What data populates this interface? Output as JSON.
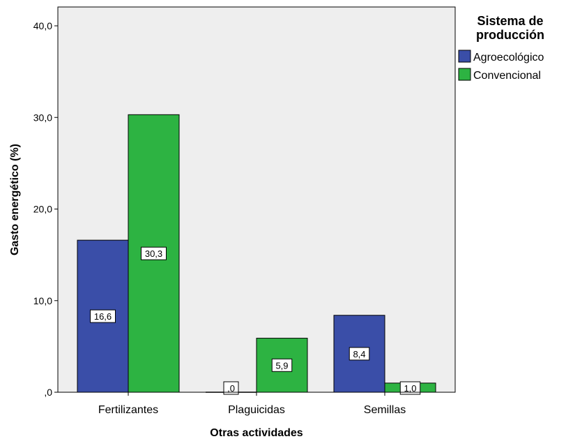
{
  "chart_data": {
    "type": "bar",
    "categories": [
      "Fertilizantes",
      "Plaguicidas",
      "Semillas"
    ],
    "series": [
      {
        "name": "Agroecológico",
        "color": "#3a4ea8",
        "values": [
          16.6,
          0.0,
          8.4
        ],
        "labels": [
          "16,6",
          ",0",
          "8,4"
        ]
      },
      {
        "name": "Convencional",
        "color": "#2db342",
        "values": [
          30.3,
          5.9,
          1.0
        ],
        "labels": [
          "30,3",
          "5,9",
          "1,0"
        ]
      }
    ],
    "xlabel": "Otras actividades",
    "ylabel": "Gasto energético (%)",
    "ylim": [
      0,
      40
    ],
    "yticks": [
      0,
      10,
      20,
      30,
      40
    ],
    "ytick_labels": [
      ",0",
      "10,0",
      "20,0",
      "30,0",
      "40,0"
    ],
    "legend": {
      "title_lines": [
        "Sistema de",
        "producción"
      ],
      "position": "top-right"
    },
    "plot_background": "#eeeeee",
    "grid": false
  }
}
